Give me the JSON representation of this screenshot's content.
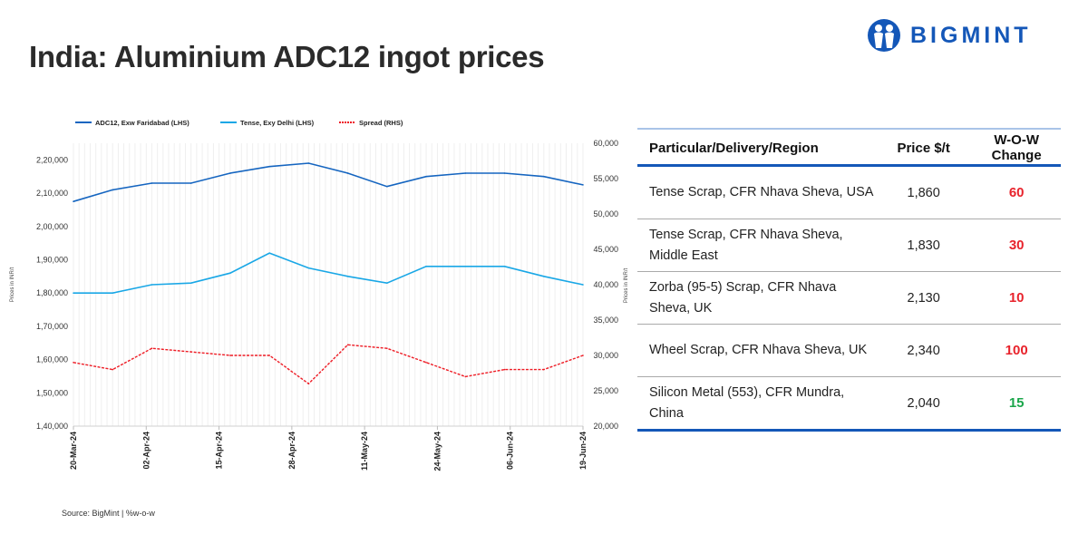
{
  "header": {
    "title": "India: Aluminium ADC12 ingot prices",
    "logo_text": "BIGMINT"
  },
  "source": "Source: BigMint | %w-o-w",
  "colors": {
    "adc12": "#1565c0",
    "tense": "#19a7e6",
    "spread": "#ee1c25",
    "brand": "#1457b8",
    "up": "#e8232c",
    "down": "#1aa64a"
  },
  "chart_data": {
    "type": "line",
    "title": "",
    "x": [
      "20-Mar-24",
      "27-Mar-24",
      "03-Apr-24",
      "10-Apr-24",
      "17-Apr-24",
      "24-Apr-24",
      "01-May-24",
      "08-May-24",
      "15-May-24",
      "22-May-24",
      "29-May-24",
      "05-Jun-24",
      "12-Jun-24",
      "19-Jun-24"
    ],
    "x_ticks": [
      "20-Mar-24",
      "02-Apr-24",
      "15-Apr-24",
      "28-Apr-24",
      "11-May-24",
      "24-May-24",
      "06-Jun-24",
      "19-Jun-24"
    ],
    "ylabel_left": "Prices in INR/t",
    "ylabel_right": "Prices in INR/t",
    "ylim_left": [
      140000,
      225000
    ],
    "ylim_right": [
      20000,
      60000
    ],
    "y_ticks_left": [
      "1,40,000",
      "1,50,000",
      "1,60,000",
      "1,70,000",
      "1,80,000",
      "1,90,000",
      "2,00,000",
      "2,10,000",
      "2,20,000"
    ],
    "y_ticks_left_values": [
      140000,
      150000,
      160000,
      170000,
      180000,
      190000,
      200000,
      210000,
      220000
    ],
    "y_ticks_right": [
      "20,000",
      "25,000",
      "30,000",
      "35,000",
      "40,000",
      "45,000",
      "50,000",
      "55,000",
      "60,000"
    ],
    "y_ticks_right_values": [
      20000,
      25000,
      30000,
      35000,
      40000,
      45000,
      50000,
      55000,
      60000
    ],
    "grid": "vertical-daily",
    "legend_position": "top",
    "series": [
      {
        "name": "ADC12, Exw Faridabad (LHS)",
        "axis": "left",
        "style": "solid",
        "color": "#1565c0",
        "values": [
          207500,
          211000,
          213000,
          213000,
          216000,
          218000,
          219000,
          216000,
          212000,
          215000,
          216000,
          216000,
          215000,
          212500
        ]
      },
      {
        "name": "Tense, Exy Delhi (LHS)",
        "axis": "left",
        "style": "solid",
        "color": "#19a7e6",
        "values": [
          180000,
          180000,
          182500,
          183000,
          186000,
          192000,
          187500,
          185000,
          183000,
          188000,
          188000,
          188000,
          185000,
          182500
        ]
      },
      {
        "name": "Spread (RHS)",
        "axis": "right",
        "style": "dashed",
        "color": "#ee1c25",
        "values": [
          29000,
          28000,
          31000,
          30500,
          30000,
          30000,
          26000,
          31500,
          31000,
          29000,
          27000,
          28000,
          28000,
          30000
        ]
      }
    ]
  },
  "table": {
    "headers": [
      "Particular/Delivery/Region",
      "Price $/t",
      "W-O-W Change"
    ],
    "rows": [
      {
        "item": "Tense Scrap, CFR Nhava Sheva, USA",
        "price": "1,860",
        "change": "60",
        "dir": "up"
      },
      {
        "item": "Tense Scrap, CFR Nhava Sheva, Middle East",
        "price": "1,830",
        "change": "30",
        "dir": "up"
      },
      {
        "item": "Zorba (95-5) Scrap, CFR Nhava Sheva, UK",
        "price": "2,130",
        "change": "10",
        "dir": "up"
      },
      {
        "item": "Wheel Scrap, CFR Nhava Sheva, UK",
        "price": "2,340",
        "change": "100",
        "dir": "up"
      },
      {
        "item": "Silicon Metal (553), CFR Mundra, China",
        "price": "2,040",
        "change": "15",
        "dir": "down"
      }
    ]
  }
}
